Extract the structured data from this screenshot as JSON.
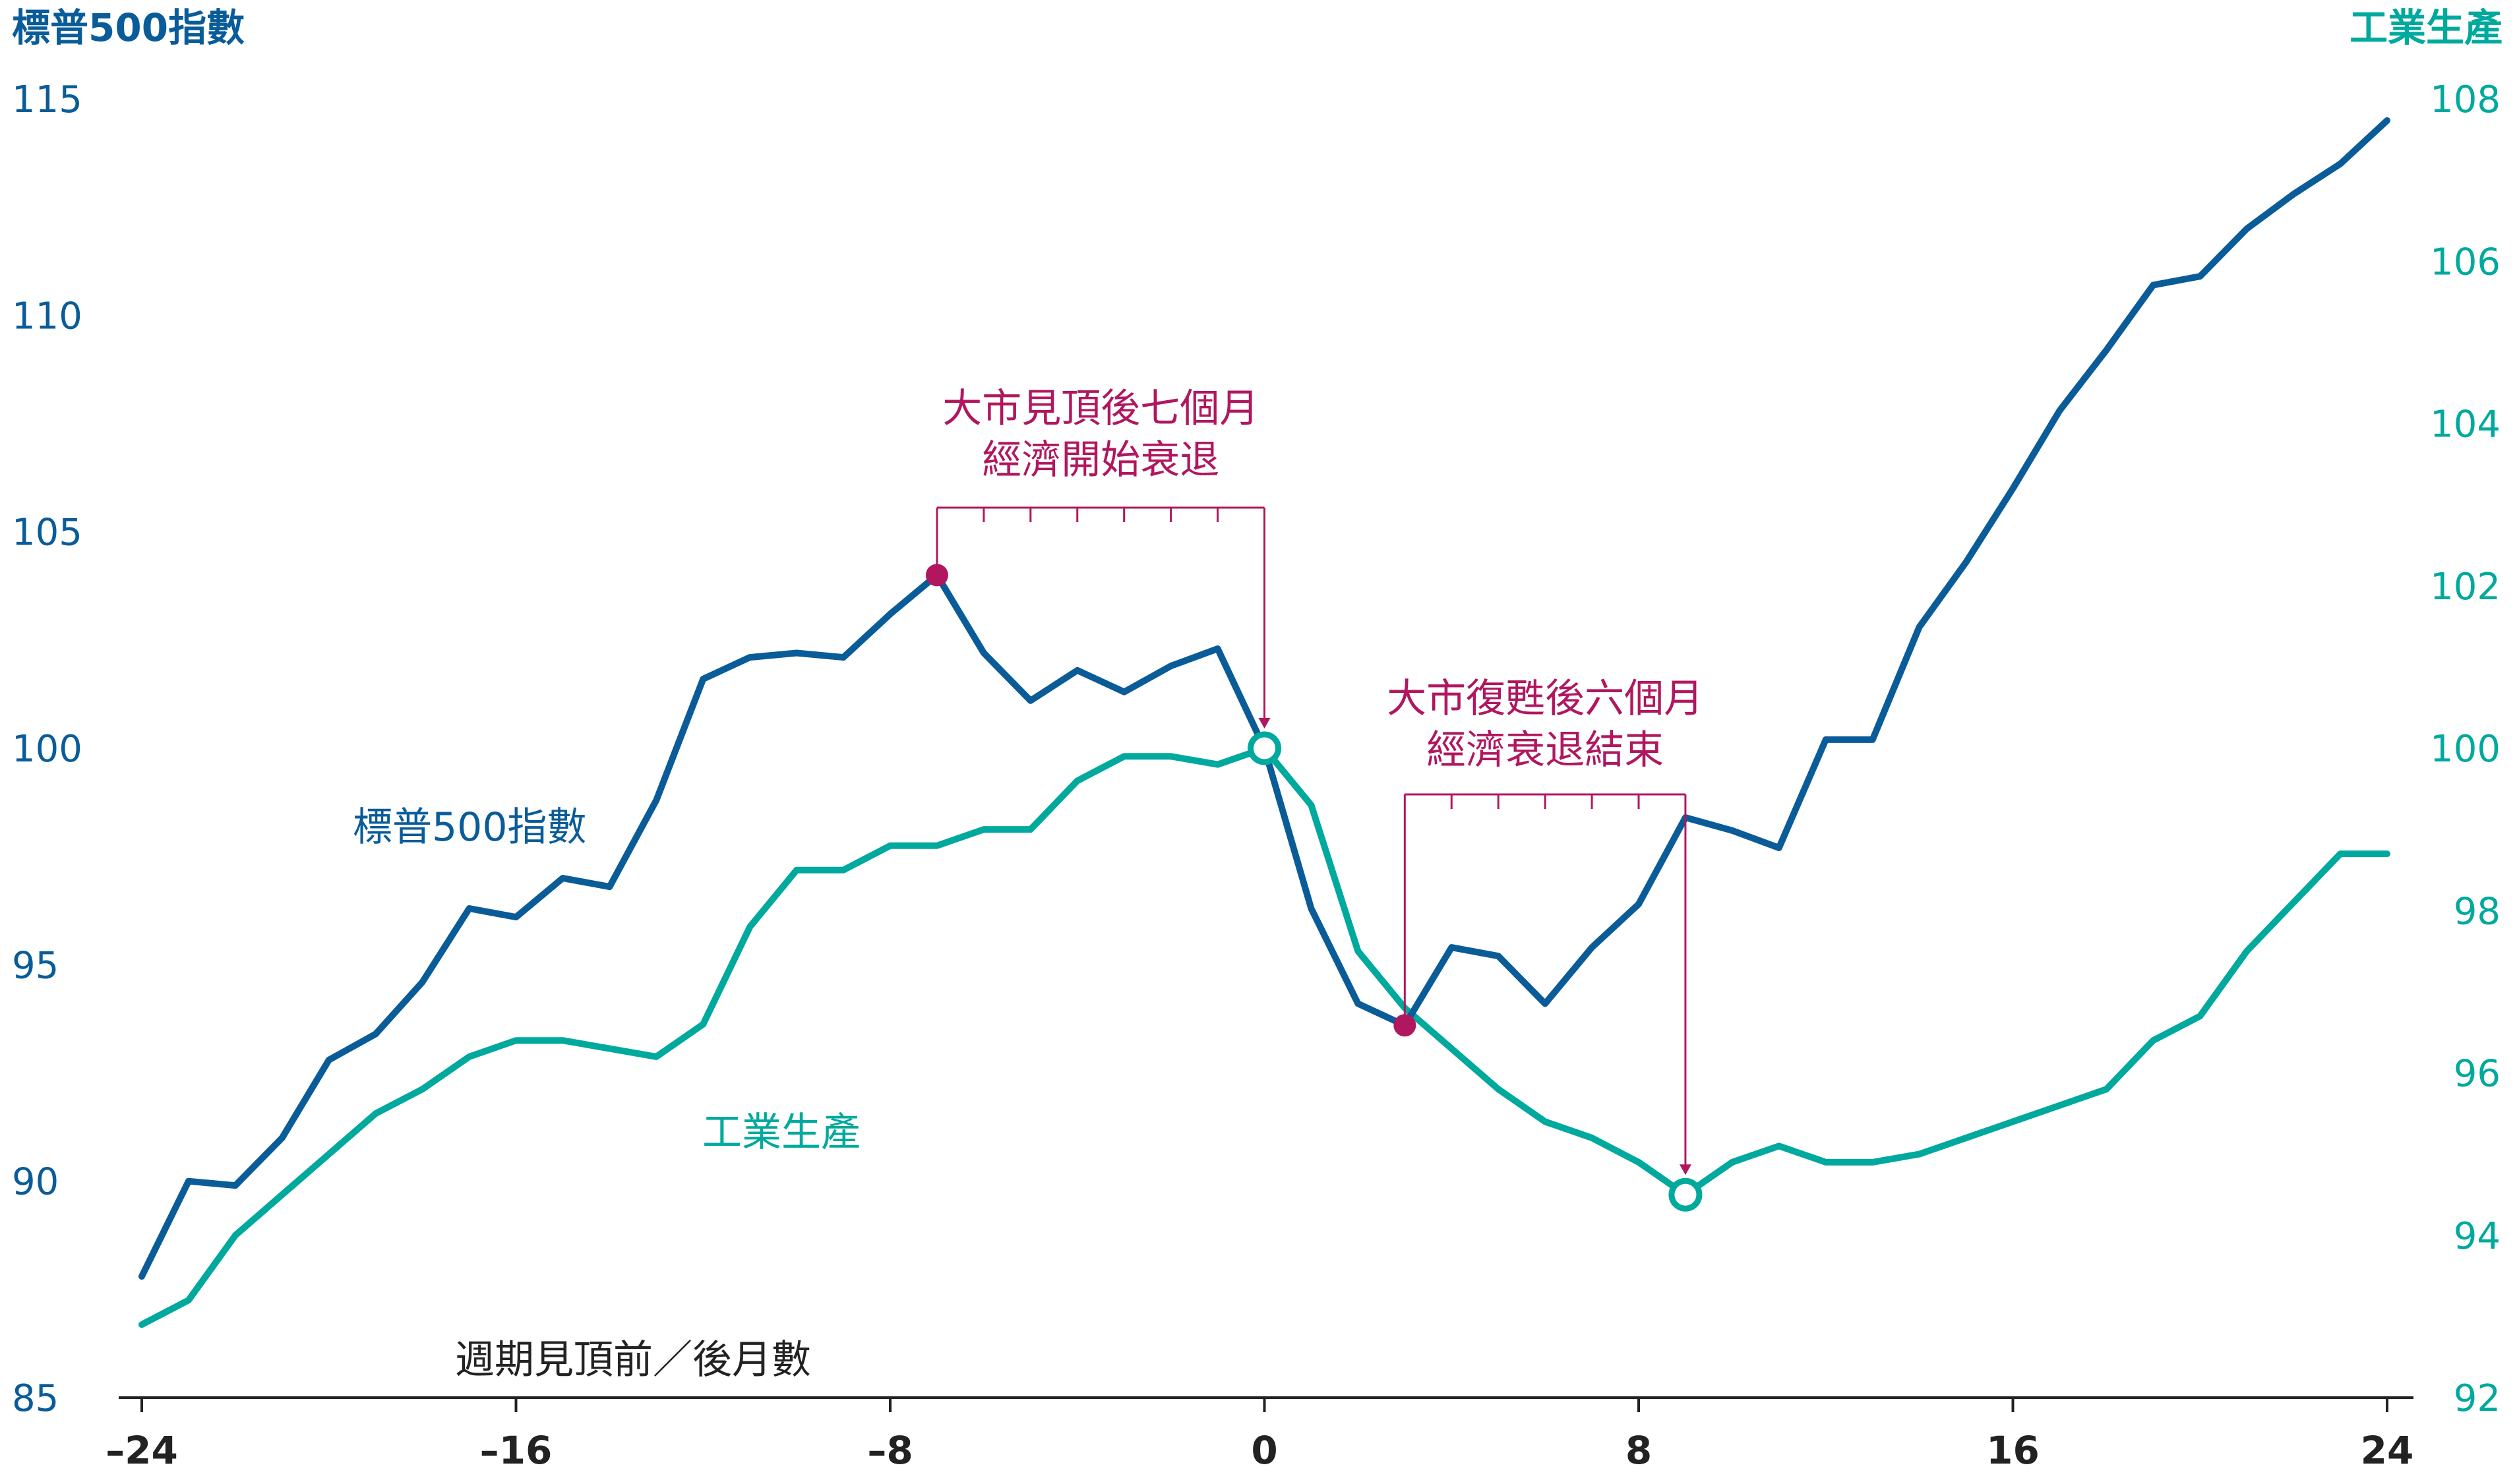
{
  "colors": {
    "sp500": "#0a5c99",
    "industrial": "#00a99d",
    "annotation": "#b0175f",
    "axis": "#222222"
  },
  "chart_data": {
    "type": "line",
    "left_axis_title": "標普500指數",
    "right_axis_title": "工業生產",
    "xlabel": "週期見頂前／後月數",
    "xlim": [
      -24,
      24
    ],
    "x_ticks": [
      -24,
      -16,
      -8,
      0,
      8,
      16,
      24
    ],
    "x_tick_labels": [
      "–24",
      "–16",
      "–8",
      "0",
      "8",
      "16",
      "24"
    ],
    "y_left_lim": [
      85,
      115
    ],
    "y_left_ticks": [
      85,
      90,
      95,
      100,
      105,
      110,
      115
    ],
    "y_right_lim": [
      92,
      108
    ],
    "y_right_ticks": [
      92,
      94,
      96,
      98,
      100,
      102,
      104,
      106,
      108
    ],
    "grid": false,
    "series": [
      {
        "name": "標普500指數",
        "axis": "left",
        "x": [
          -24,
          -23,
          -22,
          -21,
          -20,
          -19,
          -18,
          -17,
          -16,
          -15,
          -14,
          -13,
          -12,
          -11,
          -10,
          -9,
          -8,
          -7,
          -6,
          -5,
          -4,
          -3,
          -2,
          -1,
          0,
          1,
          2,
          3,
          4,
          5,
          6,
          7,
          8,
          9,
          10,
          11,
          12,
          13,
          14,
          15,
          16,
          17,
          18,
          19,
          20,
          21,
          22,
          23,
          24
        ],
        "values": [
          87.8,
          90.0,
          89.9,
          91.0,
          92.8,
          93.4,
          94.6,
          96.3,
          96.1,
          97.0,
          96.8,
          98.8,
          101.6,
          102.1,
          102.2,
          102.1,
          103.1,
          104.0,
          102.2,
          101.1,
          101.8,
          101.3,
          101.9,
          102.3,
          100.0,
          96.3,
          94.1,
          93.6,
          95.4,
          95.2,
          94.1,
          95.4,
          96.4,
          98.4,
          98.1,
          97.7,
          100.2,
          100.2,
          102.8,
          104.3,
          106.0,
          107.8,
          109.2,
          110.7,
          110.9,
          112.0,
          112.8,
          113.5,
          114.5
        ]
      },
      {
        "name": "工業生產",
        "axis": "right",
        "x": [
          -24,
          -23,
          -22,
          -21,
          -20,
          -19,
          -18,
          -17,
          -16,
          -15,
          -14,
          -13,
          -12,
          -11,
          -10,
          -9,
          -8,
          -7,
          -6,
          -5,
          -4,
          -3,
          -2,
          -1,
          0,
          1,
          2,
          3,
          4,
          5,
          6,
          7,
          8,
          9,
          10,
          11,
          12,
          13,
          14,
          15,
          16,
          17,
          18,
          19,
          20,
          21,
          22,
          23,
          24
        ],
        "values": [
          92.9,
          93.2,
          94.0,
          94.5,
          95.0,
          95.5,
          95.8,
          96.2,
          96.4,
          96.4,
          96.3,
          96.2,
          96.6,
          97.8,
          98.5,
          98.5,
          98.8,
          98.8,
          99.0,
          99.0,
          99.6,
          99.9,
          99.9,
          99.8,
          100.0,
          99.3,
          97.5,
          96.8,
          96.3,
          95.8,
          95.4,
          95.2,
          94.9,
          94.5,
          94.9,
          95.1,
          94.9,
          94.9,
          95.0,
          95.2,
          95.4,
          95.6,
          95.8,
          96.4,
          96.7,
          97.5,
          98.1,
          98.7,
          98.7
        ]
      }
    ],
    "annotations": [
      {
        "lines": [
          "大市見頂後七個月",
          "經濟開始衰退"
        ],
        "from_x": -7,
        "from_value": 104.0,
        "from_axis": "left",
        "to_x": 0,
        "to_value": 100.0,
        "to_axis": "right",
        "span_months": 7
      },
      {
        "lines": [
          "大市復甦後六個月",
          "經濟衰退結束"
        ],
        "from_x": 3,
        "from_value": 93.6,
        "from_axis": "left",
        "to_x": 9,
        "to_value": 94.5,
        "to_axis": "right",
        "span_months": 6
      }
    ],
    "inline_labels": [
      {
        "series": "標普500指數",
        "text": "標普500指數"
      },
      {
        "series": "工業生產",
        "text": "工業生產"
      }
    ]
  }
}
